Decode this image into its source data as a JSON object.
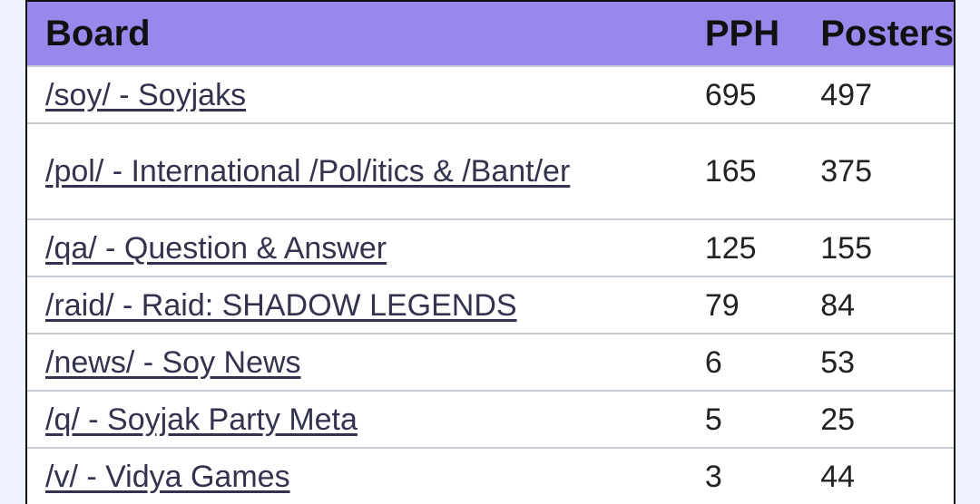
{
  "table": {
    "headers": {
      "board": "Board",
      "pph": "PPH",
      "posters": "Posters"
    },
    "rows": [
      {
        "board": "/soy/ - Soyjaks",
        "pph": "695",
        "posters": "497"
      },
      {
        "board": "/pol/ - International /Pol/itics & /Bant/er",
        "pph": "165",
        "posters": "375"
      },
      {
        "board": "/qa/ - Question & Answer",
        "pph": "125",
        "posters": "155"
      },
      {
        "board": "/raid/ - Raid: SHADOW LEGENDS",
        "pph": "79",
        "posters": "84"
      },
      {
        "board": "/news/ - Soy News",
        "pph": "6",
        "posters": "53"
      },
      {
        "board": "/q/ - Soyjak Party Meta",
        "pph": "5",
        "posters": "25"
      },
      {
        "board": "/v/ - Vidya Games",
        "pph": "3",
        "posters": "44"
      }
    ]
  },
  "colors": {
    "header_bg": "#9988ec",
    "link": "#33334f",
    "page_bg": "#eef2fd"
  }
}
